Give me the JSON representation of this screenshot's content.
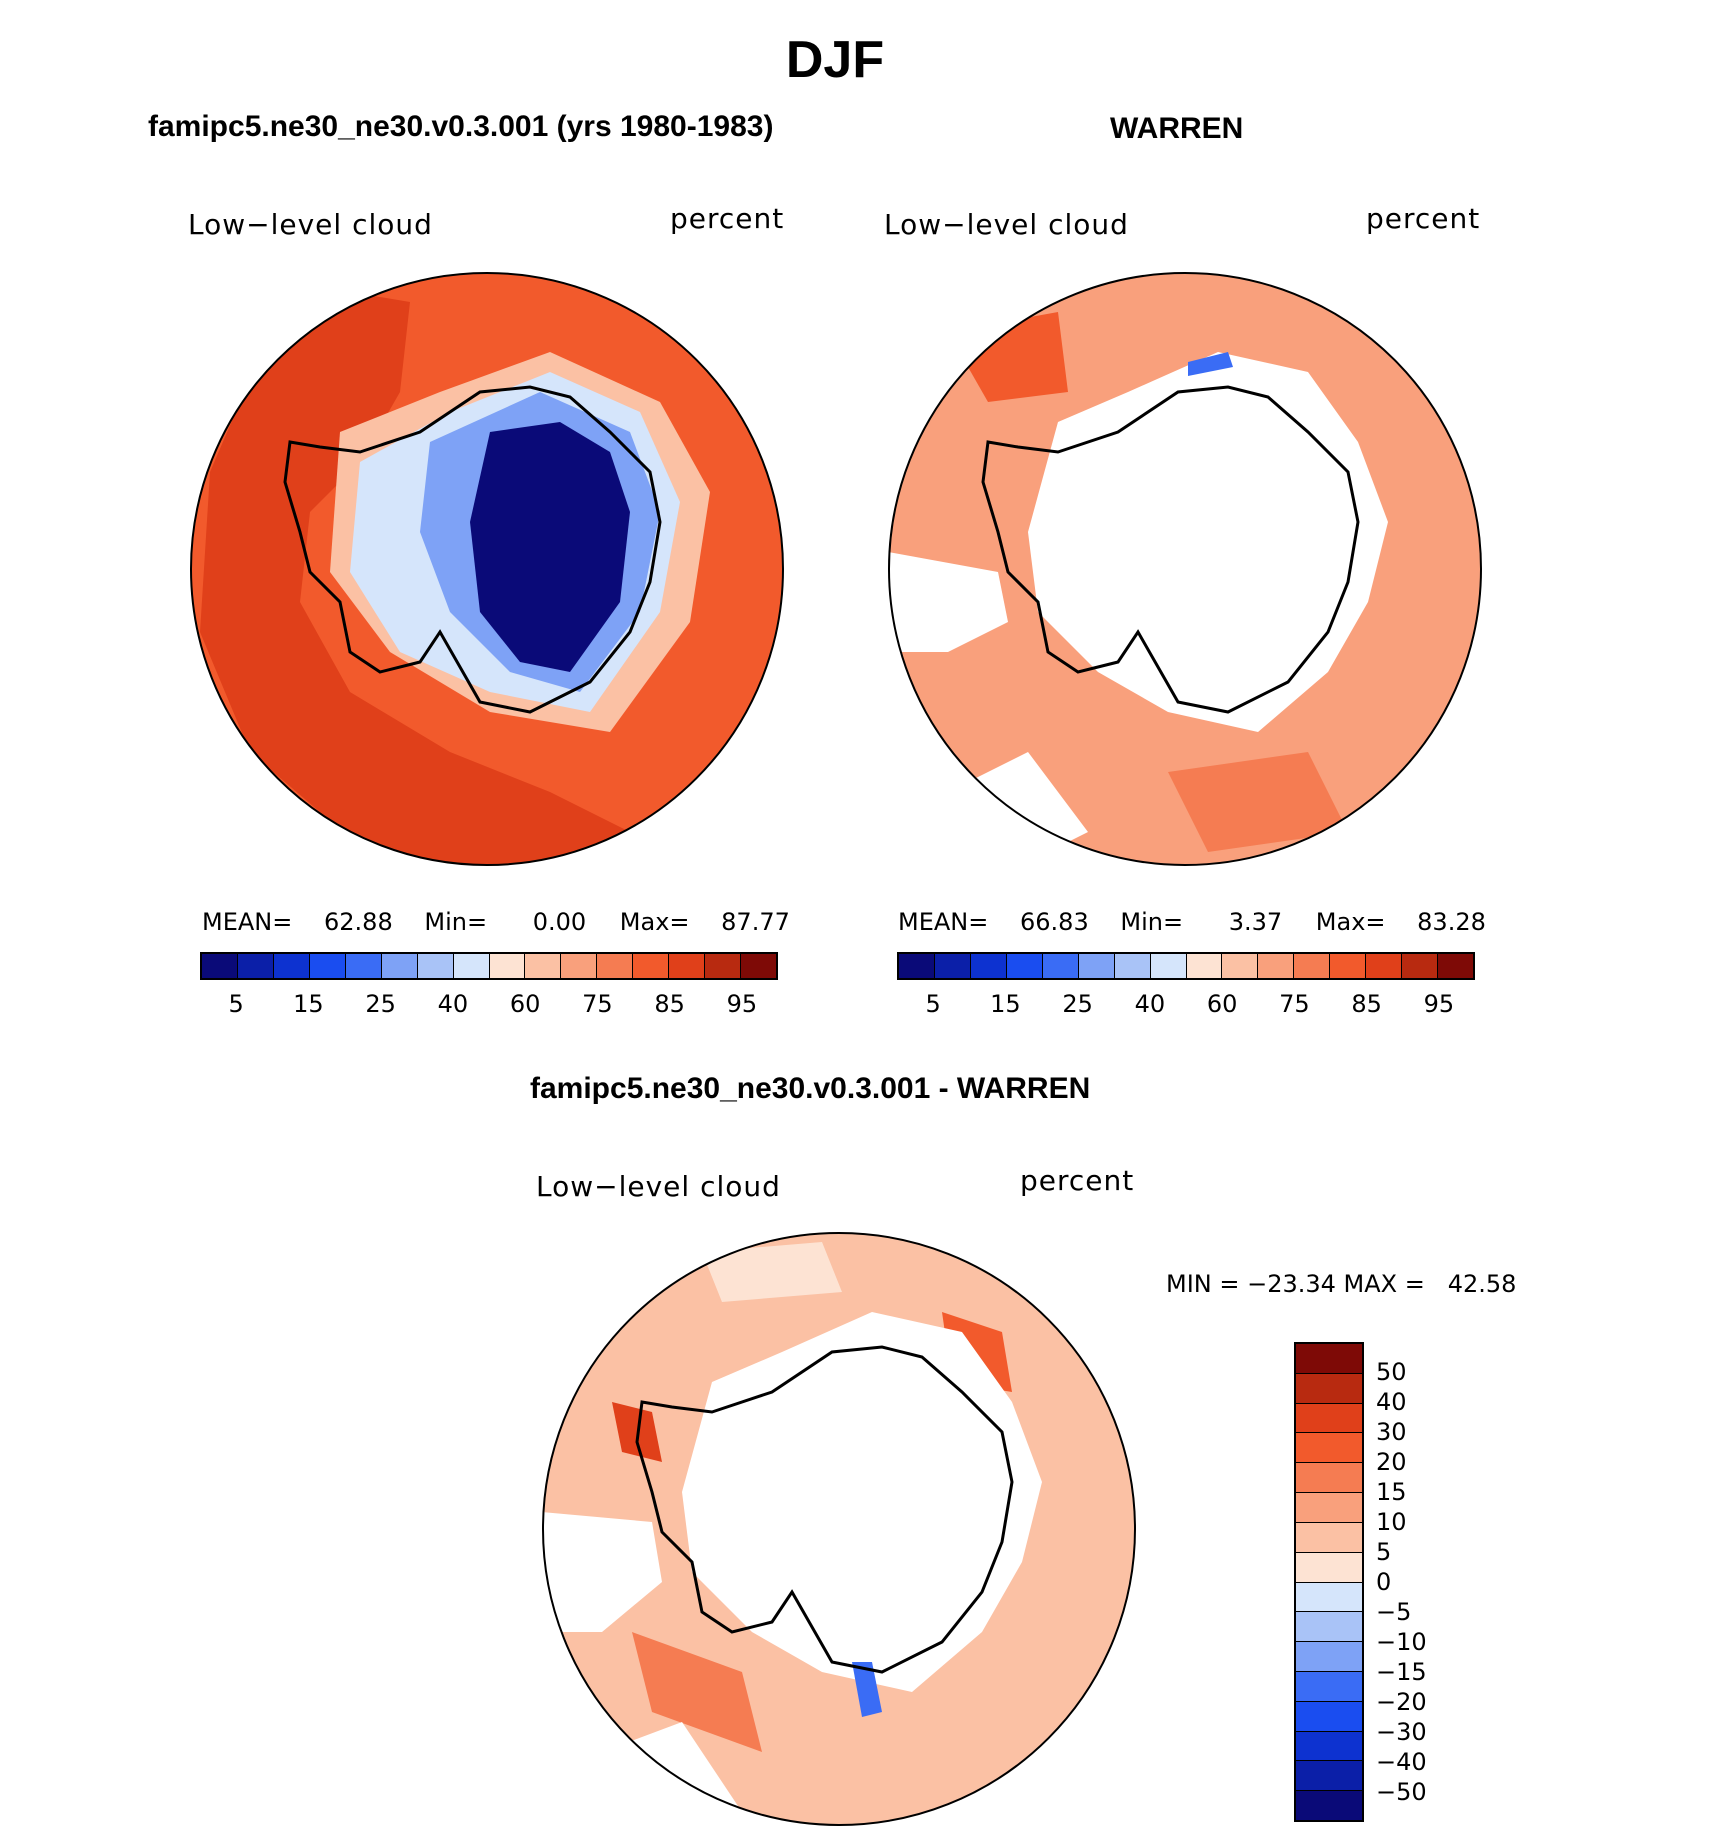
{
  "title": "DJF",
  "panels": [
    {
      "header": "famipc5.ne30_ne30.v0.3.001 (yrs 1980-1983)",
      "left_label": "Low−level cloud",
      "right_label": "percent",
      "stats": {
        "mean_label": "MEAN=",
        "mean": "62.88",
        "min_label": "Min=",
        "min": "0.00",
        "max_label": "Max=",
        "max": "87.77"
      }
    },
    {
      "header": "WARREN",
      "left_label": "Low−level cloud",
      "right_label": "percent",
      "stats": {
        "mean_label": "MEAN=",
        "mean": "66.83",
        "min_label": "Min=",
        "min": "3.37",
        "max_label": "Max=",
        "max": "83.28"
      }
    }
  ],
  "abs_colorbar": {
    "colors": [
      "#0a0a78",
      "#0b1fa8",
      "#0d32d0",
      "#1a4df0",
      "#3a6cf5",
      "#7ea2f6",
      "#a9c3f7",
      "#d5e5fb",
      "#fde3d3",
      "#fbc1a4",
      "#f9a07c",
      "#f57c52",
      "#f25a2c",
      "#e0401a",
      "#b82a10",
      "#7e0a06"
    ],
    "tick_labels": [
      "5",
      "15",
      "25",
      "40",
      "60",
      "75",
      "85",
      "95"
    ]
  },
  "diff_panel": {
    "header": "famipc5.ne30_ne30.v0.3.001 - WARREN",
    "left_label": "Low−level cloud",
    "right_label": "percent",
    "minmax": "MIN = −23.34 MAX =   42.58"
  },
  "diff_colorbar": {
    "colors": [
      "#7e0a06",
      "#b82a10",
      "#e0401a",
      "#f25a2c",
      "#f57c52",
      "#f9a07c",
      "#fbc1a4",
      "#fde3d3",
      "#d5e5fb",
      "#a9c3f7",
      "#7ea2f6",
      "#3a6cf5",
      "#1a4df0",
      "#0d32d0",
      "#0b1fa8",
      "#0a0a78"
    ],
    "tick_labels": [
      "50",
      "40",
      "30",
      "20",
      "15",
      "10",
      "5",
      "0",
      "−5",
      "−10",
      "−15",
      "−20",
      "−30",
      "−40",
      "−50"
    ]
  }
}
